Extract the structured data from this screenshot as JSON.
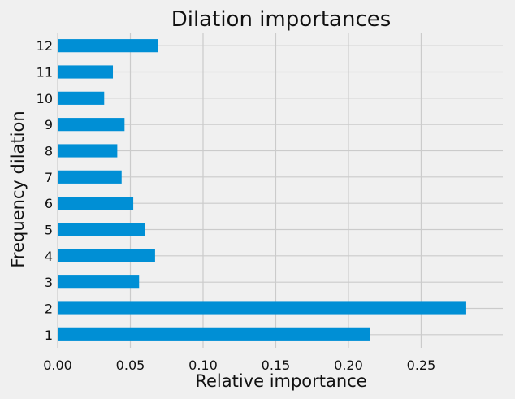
{
  "chart_data": {
    "type": "bar",
    "orientation": "horizontal",
    "title": "Dilation importances",
    "xlabel": "Relative importance",
    "ylabel": "Frequency dilation",
    "categories": [
      "1",
      "2",
      "3",
      "4",
      "5",
      "6",
      "7",
      "8",
      "9",
      "10",
      "11",
      "12"
    ],
    "values": [
      0.215,
      0.281,
      0.056,
      0.067,
      0.06,
      0.052,
      0.044,
      0.041,
      0.046,
      0.032,
      0.038,
      0.069
    ],
    "xlim": [
      0,
      0.295
    ],
    "xticks": [
      "0.00",
      "0.05",
      "0.10",
      "0.15",
      "0.20",
      "0.25"
    ],
    "xtick_values": [
      0,
      0.05,
      0.1,
      0.15,
      0.2,
      0.25
    ],
    "grid": true,
    "colors": {
      "bar": "#008fd5",
      "background": "#f0f0f0",
      "grid": "#cbcbcb"
    }
  }
}
